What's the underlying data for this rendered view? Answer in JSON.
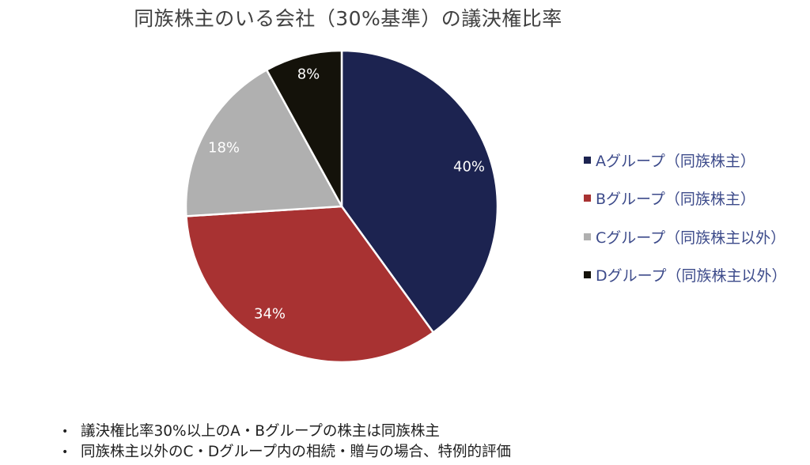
{
  "chart_data": {
    "type": "pie",
    "title": "同族株主のいる会社（30%基準）の議決権比率",
    "categories": [
      "Aグループ（同族株主）",
      "Bグループ（同族株主）",
      "Cグループ（同族株主以外）",
      "Dグループ（同族株主以外）"
    ],
    "values": [
      40,
      34,
      18,
      8
    ],
    "labels": [
      "40%",
      "34%",
      "18%",
      "8%"
    ],
    "colors": [
      "#1c2350",
      "#a83232",
      "#b0b0b0",
      "#14120a"
    ],
    "start_angle": "12 o'clock, clockwise",
    "legend_position": "right"
  },
  "title": "同族株主のいる会社（30%基準）の議決権比率",
  "slices": [
    {
      "label": "40%",
      "color": "#1c2350"
    },
    {
      "label": "34%",
      "color": "#a83232"
    },
    {
      "label": "18%",
      "color": "#b0b0b0"
    },
    {
      "label": "8%",
      "color": "#14120a"
    }
  ],
  "legend": [
    {
      "label": "Aグループ（同族株主）",
      "color": "#1c2350"
    },
    {
      "label": "Bグループ（同族株主）",
      "color": "#a83232"
    },
    {
      "label": "Cグループ（同族株主以外）",
      "color": "#b0b0b0"
    },
    {
      "label": "Dグループ（同族株主以外）",
      "color": "#14120a"
    }
  ],
  "notes": [
    {
      "bullet": "•",
      "text": "議決権比率30%以上のA・Bグループの株主は同族株主"
    },
    {
      "bullet": "•",
      "text": "同族株主以外のC・Dグループ内の相続・贈与の場合、特例的評価"
    }
  ]
}
